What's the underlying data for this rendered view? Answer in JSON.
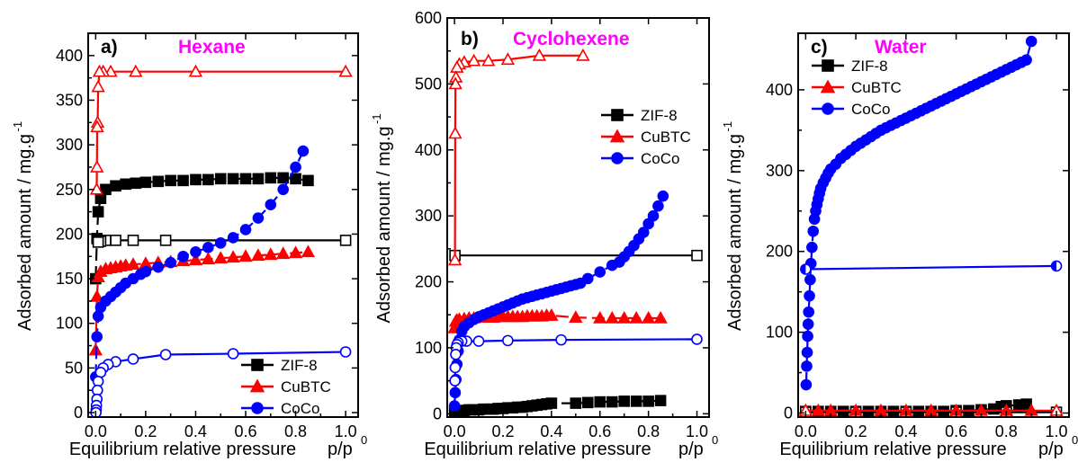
{
  "colors": {
    "zif8": "#000000",
    "cubtc": "#ff0000",
    "coco": "#0000ff",
    "title": "#ff00ff"
  },
  "chart_data": [
    {
      "type": "scatter",
      "panel_label": "a)",
      "title": "Hexane",
      "xlabel": "Equilibrium relative pressure",
      "xlabel_unit": "p/p",
      "xlabel_unit_sub": "0",
      "ylabel": "Adsorbed amount / mg.g",
      "ylabel_sup": "-1",
      "xlim": [
        -0.03,
        1.05
      ],
      "ylim": [
        -5,
        425
      ],
      "x_ticks": [
        0.0,
        0.2,
        0.4,
        0.6,
        0.8,
        1.0
      ],
      "x_tick_labels": [
        "0.0",
        "0.2",
        "0.4",
        "0.6",
        "0.8",
        "1.0"
      ],
      "y_ticks": [
        0,
        50,
        100,
        150,
        200,
        250,
        300,
        350,
        400
      ],
      "y_tick_labels": [
        "0",
        "50",
        "100",
        "150",
        "200",
        "250",
        "300",
        "350",
        "400"
      ],
      "legend": {
        "position": "bottom-right",
        "entries": [
          "ZIF-8",
          "CuBTC",
          "CoCo"
        ]
      },
      "series": [
        {
          "name": "ZIF-8",
          "branch": "adsorption",
          "marker": "square",
          "fill": "filled",
          "color": "#000000",
          "x": [
            0.0,
            0.005,
            0.01,
            0.02,
            0.04,
            0.08,
            0.12,
            0.16,
            0.2,
            0.25,
            0.3,
            0.35,
            0.4,
            0.45,
            0.5,
            0.55,
            0.6,
            0.65,
            0.7,
            0.75,
            0.8,
            0.85
          ],
          "y": [
            150,
            195,
            225,
            240,
            250,
            254,
            256,
            257,
            258,
            259,
            260,
            260,
            261,
            261,
            262,
            262,
            262,
            262,
            263,
            263,
            262,
            260
          ]
        },
        {
          "name": "ZIF-8",
          "branch": "desorption",
          "marker": "square",
          "fill": "open",
          "color": "#000000",
          "x": [
            1.0,
            0.28,
            0.15,
            0.08,
            0.04,
            0.02,
            0.01
          ],
          "y": [
            193,
            193,
            193,
            193,
            193,
            192,
            191
          ]
        },
        {
          "name": "CuBTC",
          "branch": "adsorption",
          "marker": "triangle",
          "fill": "filled",
          "color": "#ff0000",
          "x": [
            0.0,
            0.005,
            0.01,
            0.02,
            0.04,
            0.06,
            0.08,
            0.1,
            0.12,
            0.15,
            0.2,
            0.25,
            0.3,
            0.35,
            0.4,
            0.45,
            0.5,
            0.55,
            0.6,
            0.65,
            0.7,
            0.75,
            0.8,
            0.85
          ],
          "y": [
            70,
            130,
            152,
            158,
            161,
            162,
            163,
            164,
            165,
            166,
            167,
            168,
            169,
            170,
            171,
            172,
            173,
            174,
            175,
            176,
            177,
            178,
            179,
            180
          ]
        },
        {
          "name": "CuBTC",
          "branch": "desorption",
          "marker": "triangle",
          "fill": "open",
          "color": "#ff0000",
          "x": [
            1.0,
            0.4,
            0.16,
            0.06,
            0.03,
            0.015,
            0.01,
            0.008,
            0.006,
            0.005,
            0.004
          ],
          "y": [
            382,
            382,
            382,
            382,
            382,
            382,
            365,
            325,
            320,
            275,
            250
          ]
        },
        {
          "name": "CoCo",
          "branch": "adsorption",
          "marker": "circle",
          "fill": "filled",
          "color": "#0000ff",
          "x": [
            0.0,
            0.005,
            0.01,
            0.02,
            0.04,
            0.06,
            0.08,
            0.1,
            0.12,
            0.15,
            0.18,
            0.2,
            0.25,
            0.3,
            0.35,
            0.4,
            0.45,
            0.5,
            0.55,
            0.6,
            0.65,
            0.7,
            0.75,
            0.8,
            0.83
          ],
          "y": [
            40,
            85,
            108,
            118,
            125,
            130,
            135,
            140,
            145,
            150,
            155,
            158,
            163,
            168,
            175,
            180,
            185,
            190,
            196,
            205,
            218,
            233,
            250,
            275,
            293
          ]
        },
        {
          "name": "CoCo",
          "branch": "desorption",
          "marker": "circle",
          "fill": "open",
          "color": "#0000ff",
          "x": [
            1.0,
            0.55,
            0.28,
            0.15,
            0.08,
            0.05,
            0.03,
            0.02,
            0.01,
            0.007,
            0.005,
            0.003,
            0.002,
            0.001
          ],
          "y": [
            68,
            66,
            65,
            60,
            57,
            54,
            50,
            45,
            35,
            25,
            15,
            8,
            3,
            0
          ]
        }
      ]
    },
    {
      "type": "scatter",
      "panel_label": "b)",
      "title": "Cyclohexene",
      "xlabel": "Equilibrium relative pressure",
      "xlabel_unit": "p/p",
      "xlabel_unit_sub": "0",
      "ylabel": "Adsorbed amount / mg.g",
      "ylabel_sup": "-1",
      "xlim": [
        -0.03,
        1.05
      ],
      "ylim": [
        -5,
        600
      ],
      "x_ticks": [
        0.0,
        0.2,
        0.4,
        0.6,
        0.8,
        1.0
      ],
      "x_tick_labels": [
        "0.0",
        "0.2",
        "0.4",
        "0.6",
        "0.8",
        "1.0"
      ],
      "y_ticks": [
        0,
        100,
        200,
        300,
        400,
        500,
        600
      ],
      "y_tick_labels": [
        "0",
        "100",
        "200",
        "300",
        "400",
        "500",
        "600"
      ],
      "legend": {
        "position": "top-right",
        "entries": [
          "ZIF-8",
          "CuBTC",
          "CoCo"
        ]
      },
      "series": [
        {
          "name": "ZIF-8",
          "branch": "adsorption",
          "marker": "square",
          "fill": "filled",
          "color": "#000000",
          "x": [
            0.0,
            0.005,
            0.01,
            0.02,
            0.04,
            0.06,
            0.08,
            0.1,
            0.12,
            0.14,
            0.16,
            0.18,
            0.2,
            0.22,
            0.24,
            0.26,
            0.28,
            0.3,
            0.32,
            0.34,
            0.36,
            0.38,
            0.4,
            0.5,
            0.55,
            0.6,
            0.65,
            0.7,
            0.75,
            0.8,
            0.85
          ],
          "y": [
            2,
            3,
            4,
            5,
            5,
            6,
            6,
            6,
            7,
            7,
            7,
            8,
            8,
            9,
            9,
            10,
            10,
            11,
            12,
            13,
            14,
            15,
            16,
            16,
            17,
            18,
            18,
            19,
            19,
            19,
            20
          ]
        },
        {
          "name": "ZIF-8",
          "branch": "desorption",
          "marker": "square",
          "fill": "open",
          "color": "#000000",
          "x": [
            1.0,
            0.002
          ],
          "y": [
            240,
            240
          ]
        },
        {
          "name": "CuBTC",
          "branch": "adsorption",
          "marker": "triangle",
          "fill": "filled",
          "color": "#ff0000",
          "x": [
            0.0,
            0.005,
            0.01,
            0.02,
            0.04,
            0.06,
            0.08,
            0.1,
            0.12,
            0.14,
            0.16,
            0.18,
            0.2,
            0.22,
            0.24,
            0.26,
            0.28,
            0.3,
            0.32,
            0.34,
            0.36,
            0.38,
            0.4,
            0.5,
            0.6,
            0.65,
            0.7,
            0.75,
            0.8,
            0.85
          ],
          "y": [
            130,
            140,
            142,
            143,
            144,
            145,
            145,
            146,
            146,
            146,
            146,
            147,
            147,
            147,
            147,
            147,
            147,
            148,
            148,
            148,
            148,
            149,
            149,
            146,
            145,
            145,
            145,
            145,
            145,
            145
          ]
        },
        {
          "name": "CuBTC",
          "branch": "desorption",
          "marker": "triangle",
          "fill": "open",
          "color": "#ff0000",
          "x": [
            0.53,
            0.35,
            0.22,
            0.14,
            0.08,
            0.04,
            0.02,
            0.01,
            0.006,
            0.004,
            0.003,
            0.002
          ],
          "y": [
            543,
            543,
            537,
            535,
            535,
            533,
            530,
            525,
            510,
            500,
            425,
            233
          ]
        },
        {
          "name": "CoCo",
          "branch": "adsorption",
          "marker": "circle",
          "fill": "filled",
          "color": "#0000ff",
          "x": [
            0.0,
            0.003,
            0.006,
            0.01,
            0.015,
            0.02,
            0.03,
            0.04,
            0.06,
            0.08,
            0.1,
            0.12,
            0.14,
            0.16,
            0.18,
            0.2,
            0.22,
            0.24,
            0.26,
            0.28,
            0.3,
            0.32,
            0.34,
            0.36,
            0.38,
            0.4,
            0.42,
            0.44,
            0.46,
            0.48,
            0.5,
            0.52,
            0.55,
            0.6,
            0.65,
            0.68,
            0.7,
            0.72,
            0.74,
            0.76,
            0.78,
            0.8,
            0.82,
            0.84,
            0.86
          ],
          "y": [
            12,
            32,
            52,
            75,
            95,
            112,
            125,
            132,
            138,
            143,
            147,
            150,
            153,
            156,
            159,
            162,
            165,
            168,
            171,
            174,
            176,
            178,
            180,
            182,
            184,
            186,
            188,
            190,
            192,
            194,
            196,
            198,
            205,
            215,
            225,
            230,
            238,
            246,
            255,
            265,
            275,
            288,
            300,
            315,
            330
          ]
        },
        {
          "name": "CoCo",
          "branch": "desorption",
          "marker": "circle",
          "fill": "open",
          "color": "#0000ff",
          "x": [
            1.0,
            0.44,
            0.22,
            0.1,
            0.05,
            0.03,
            0.015,
            0.01,
            0.007,
            0.005,
            0.003,
            0.002
          ],
          "y": [
            113,
            112,
            111,
            110,
            110,
            110,
            108,
            105,
            100,
            90,
            70,
            50
          ]
        }
      ]
    },
    {
      "type": "scatter",
      "panel_label": "c)",
      "title": "Water",
      "xlabel": "Equilibrium relative pressure",
      "xlabel_unit": "p/p",
      "xlabel_unit_sub": "0",
      "ylabel": "Adsorbed amount / mg.g",
      "ylabel_sup": "-1",
      "xlim": [
        -0.03,
        1.05
      ],
      "ylim": [
        -5,
        470
      ],
      "x_ticks": [
        0.0,
        0.2,
        0.4,
        0.6,
        0.8,
        1.0
      ],
      "x_tick_labels": [
        "0.0",
        "0.2",
        "0.4",
        "0.6",
        "0.8",
        "1.0"
      ],
      "y_ticks": [
        0,
        100,
        200,
        300,
        400
      ],
      "y_tick_labels": [
        "0",
        "100",
        "200",
        "300",
        "400"
      ],
      "legend": {
        "position": "top-left",
        "entries": [
          "ZIF-8",
          "CuBTC",
          "CoCo"
        ]
      },
      "series": [
        {
          "name": "ZIF-8",
          "branch": "adsorption",
          "marker": "square",
          "fill": "filled",
          "color": "#000000",
          "x": [
            0.0,
            0.05,
            0.1,
            0.15,
            0.2,
            0.25,
            0.3,
            0.35,
            0.4,
            0.45,
            0.5,
            0.55,
            0.6,
            0.65,
            0.7,
            0.75,
            0.78,
            0.8,
            0.85,
            0.88
          ],
          "y": [
            2,
            2,
            2,
            2,
            2,
            2,
            2,
            2,
            2,
            2,
            2,
            2,
            3,
            3,
            4,
            5,
            8,
            9,
            10,
            11
          ]
        },
        {
          "name": "ZIF-8",
          "branch": "desorption",
          "marker": "square",
          "fill": "open",
          "color": "#000000",
          "x": [
            1.0,
            0.8,
            0.6,
            0.4,
            0.2,
            0.0
          ],
          "y": [
            1,
            1,
            1,
            1,
            1,
            1
          ]
        },
        {
          "name": "CuBTC",
          "branch": "adsorption",
          "marker": "triangle",
          "fill": "filled",
          "color": "#ff0000",
          "x": [
            0.0,
            0.05,
            0.1,
            0.2,
            0.3,
            0.4,
            0.5,
            0.6,
            0.7,
            0.8,
            0.9
          ],
          "y": [
            3,
            3,
            3,
            3,
            3,
            3,
            3,
            3,
            3,
            3,
            3
          ]
        },
        {
          "name": "CuBTC",
          "branch": "desorption",
          "marker": "triangle",
          "fill": "open",
          "color": "#ff0000",
          "x": [
            1.0,
            0.0
          ],
          "y": [
            3,
            3
          ]
        },
        {
          "name": "CoCo",
          "branch": "adsorption",
          "marker": "circle",
          "fill": "filled",
          "color": "#0000ff",
          "x": [
            0.002,
            0.004,
            0.006,
            0.008,
            0.01,
            0.012,
            0.015,
            0.018,
            0.021,
            0.025,
            0.03,
            0.035,
            0.04,
            0.045,
            0.05,
            0.055,
            0.06,
            0.07,
            0.08,
            0.09,
            0.1,
            0.12,
            0.14,
            0.16,
            0.18,
            0.2,
            0.22,
            0.24,
            0.26,
            0.28,
            0.3,
            0.32,
            0.34,
            0.36,
            0.38,
            0.4,
            0.42,
            0.44,
            0.46,
            0.48,
            0.5,
            0.52,
            0.54,
            0.56,
            0.58,
            0.6,
            0.62,
            0.64,
            0.66,
            0.68,
            0.7,
            0.72,
            0.74,
            0.76,
            0.78,
            0.8,
            0.82,
            0.84,
            0.86,
            0.88,
            0.9
          ],
          "y": [
            35,
            58,
            75,
            95,
            110,
            125,
            145,
            165,
            185,
            205,
            225,
            240,
            250,
            258,
            265,
            272,
            278,
            285,
            291,
            297,
            302,
            308,
            315,
            320,
            325,
            330,
            334,
            338,
            342,
            346,
            350,
            353,
            356,
            359,
            362,
            365,
            368,
            371,
            374,
            377,
            380,
            383,
            386,
            389,
            392,
            395,
            398,
            401,
            404,
            407,
            410,
            413,
            416,
            419,
            422,
            425,
            428,
            431,
            434,
            437,
            460
          ]
        },
        {
          "name": "CoCo",
          "branch": "desorption",
          "marker": "circle",
          "fill": "half",
          "color": "#0000ff",
          "x": [
            1.0,
            0.0
          ],
          "y": [
            182,
            178
          ]
        }
      ]
    }
  ]
}
